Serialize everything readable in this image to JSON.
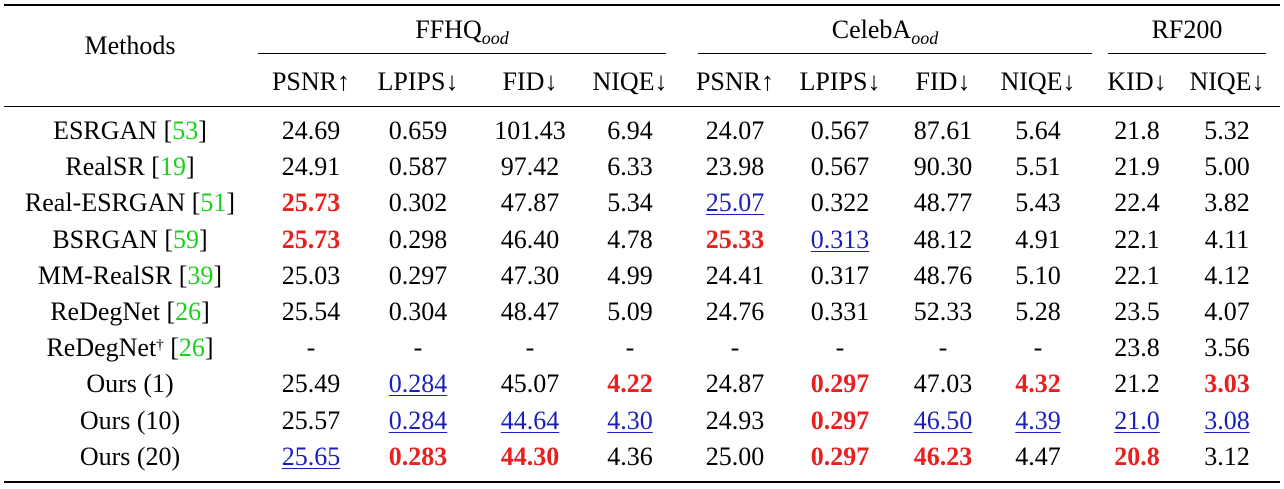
{
  "table": {
    "methods_header": "Methods",
    "groups": [
      {
        "name": "FFHQ",
        "subscript": "ood"
      },
      {
        "name": "CelebA",
        "subscript": "ood"
      },
      {
        "name": "RF200",
        "subscript": ""
      }
    ],
    "columns": [
      "PSNR↑",
      "LPIPS↓",
      "FID↓",
      "NIQE↓",
      "PSNR↑",
      "LPIPS↓",
      "FID↓",
      "NIQE↓",
      "KID↓",
      "NIQE↓"
    ],
    "rows": [
      {
        "method": "ESRGAN",
        "dagger": "",
        "cite": "53",
        "values": [
          "24.69",
          "0.659",
          "101.43",
          "6.94",
          "24.07",
          "0.567",
          "87.61",
          "5.64",
          "21.8",
          "5.32"
        ],
        "styles": [
          "",
          "",
          "",
          "",
          "",
          "",
          "",
          "",
          "",
          ""
        ]
      },
      {
        "method": "RealSR",
        "dagger": "",
        "cite": "19",
        "values": [
          "24.91",
          "0.587",
          "97.42",
          "6.33",
          "23.98",
          "0.567",
          "90.30",
          "5.51",
          "21.9",
          "5.00"
        ],
        "styles": [
          "",
          "",
          "",
          "",
          "",
          "",
          "",
          "",
          "",
          ""
        ]
      },
      {
        "method": "Real-ESRGAN",
        "dagger": "",
        "cite": "51",
        "values": [
          "25.73",
          "0.302",
          "47.87",
          "5.34",
          "25.07",
          "0.322",
          "48.77",
          "5.43",
          "22.4",
          "3.82"
        ],
        "styles": [
          "best",
          "",
          "",
          "",
          "second",
          "",
          "",
          "",
          "",
          ""
        ]
      },
      {
        "method": "BSRGAN",
        "dagger": "",
        "cite": "59",
        "values": [
          "25.73",
          "0.298",
          "46.40",
          "4.78",
          "25.33",
          "0.313",
          "48.12",
          "4.91",
          "22.1",
          "4.11"
        ],
        "styles": [
          "best",
          "",
          "",
          "",
          "best",
          "second",
          "",
          "",
          "",
          ""
        ]
      },
      {
        "method": "MM-RealSR",
        "dagger": "",
        "cite": "39",
        "values": [
          "25.03",
          "0.297",
          "47.30",
          "4.99",
          "24.41",
          "0.317",
          "48.76",
          "5.10",
          "22.1",
          "4.12"
        ],
        "styles": [
          "",
          "",
          "",
          "",
          "",
          "",
          "",
          "",
          "",
          ""
        ]
      },
      {
        "method": "ReDegNet",
        "dagger": "",
        "cite": "26",
        "values": [
          "25.54",
          "0.304",
          "48.47",
          "5.09",
          "24.76",
          "0.331",
          "52.33",
          "5.28",
          "23.5",
          "4.07"
        ],
        "styles": [
          "",
          "",
          "",
          "",
          "",
          "",
          "",
          "",
          "",
          ""
        ]
      },
      {
        "method": "ReDegNet",
        "dagger": "†",
        "cite": "26",
        "values": [
          "-",
          "-",
          "-",
          "-",
          "-",
          "-",
          "-",
          "-",
          "23.8",
          "3.56"
        ],
        "styles": [
          "",
          "",
          "",
          "",
          "",
          "",
          "",
          "",
          "",
          ""
        ]
      },
      {
        "method": "Ours (1)",
        "dagger": "",
        "cite": "",
        "values": [
          "25.49",
          "0.284",
          "45.07",
          "4.22",
          "24.87",
          "0.297",
          "47.03",
          "4.32",
          "21.2",
          "3.03"
        ],
        "styles": [
          "",
          "second",
          "",
          "best",
          "",
          "best",
          "",
          "best",
          "",
          "best"
        ]
      },
      {
        "method": "Ours (10)",
        "dagger": "",
        "cite": "",
        "values": [
          "25.57",
          "0.284",
          "44.64",
          "4.30",
          "24.93",
          "0.297",
          "46.50",
          "4.39",
          "21.0",
          "3.08"
        ],
        "styles": [
          "",
          "second",
          "second",
          "second",
          "",
          "best",
          "second",
          "second",
          "second",
          "second"
        ]
      },
      {
        "method": "Ours (20)",
        "dagger": "",
        "cite": "",
        "values": [
          "25.65",
          "0.283",
          "44.30",
          "4.36",
          "25.00",
          "0.297",
          "46.23",
          "4.47",
          "20.8",
          "3.12"
        ],
        "styles": [
          "second",
          "best",
          "best",
          "",
          "",
          "best",
          "best",
          "",
          "best",
          ""
        ]
      }
    ]
  }
}
